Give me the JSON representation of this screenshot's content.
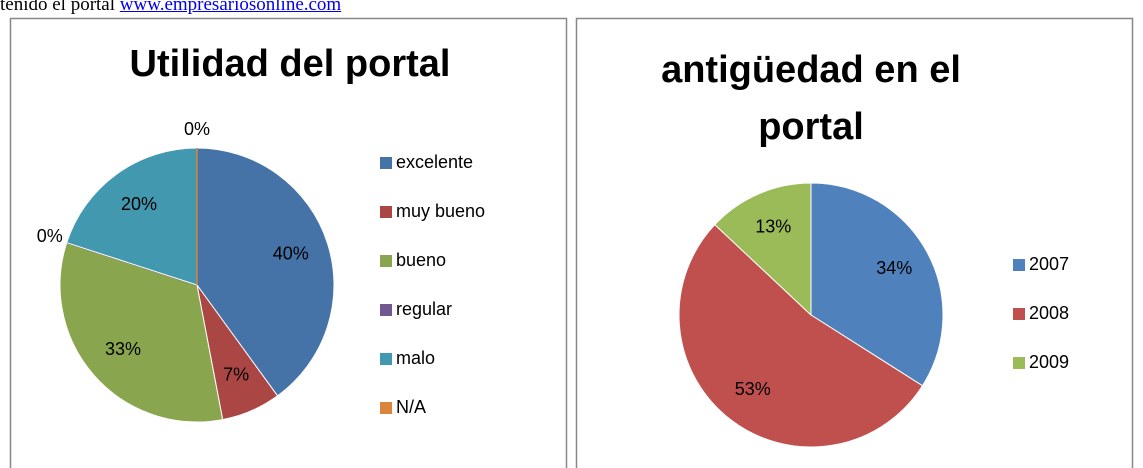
{
  "intro": "tenido el portal",
  "link": "www.empresariosonline.com",
  "chart_data": [
    {
      "type": "pie",
      "title": "Utilidad del portal",
      "categories": [
        "excelente",
        "muy bueno",
        "bueno",
        "regular",
        "malo",
        "N/A"
      ],
      "values": [
        40,
        7,
        33,
        0,
        20,
        0
      ],
      "value_labels": [
        "40%",
        "7%",
        "33%",
        "0%",
        "20%",
        "0%"
      ],
      "colors": [
        "#4572a7",
        "#aa4643",
        "#89a54e",
        "#71588f",
        "#4198af",
        "#db843d"
      ],
      "legend": "right"
    },
    {
      "type": "pie",
      "title": "antigüedad en el portal",
      "categories": [
        "2007",
        "2008",
        "2009"
      ],
      "values": [
        34,
        53,
        13
      ],
      "value_labels": [
        "34%",
        "53%",
        "13%"
      ],
      "colors": [
        "#4f81bd",
        "#c0504d",
        "#9bbb59"
      ],
      "legend": "right"
    }
  ]
}
